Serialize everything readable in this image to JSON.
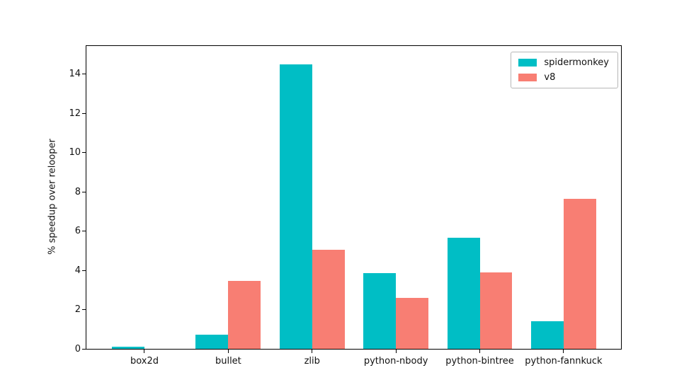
{
  "chart_data": {
    "type": "bar",
    "title": "",
    "xlabel": "",
    "ylabel": "% speedup over relooper",
    "categories": [
      "box2d",
      "bullet",
      "zlib",
      "python-nbody",
      "python-bintree",
      "python-fannkuck"
    ],
    "series": [
      {
        "name": "spidermonkey",
        "color": "#00bec5",
        "values": [
          0.1,
          0.72,
          14.5,
          3.87,
          5.65,
          1.4
        ]
      },
      {
        "name": "v8",
        "color": "#f87e73",
        "values": [
          0.0,
          3.45,
          5.05,
          2.6,
          3.9,
          7.65
        ]
      }
    ],
    "yticks": [
      0,
      2,
      4,
      6,
      8,
      10,
      12,
      14
    ],
    "ylim": [
      0,
      15.43
    ],
    "bar_group_width_ratio": 0.39,
    "legend_position": "upper right",
    "grid": false,
    "background_color": "#ffffff",
    "spine_color": "#000000",
    "text_color": "#111111"
  }
}
